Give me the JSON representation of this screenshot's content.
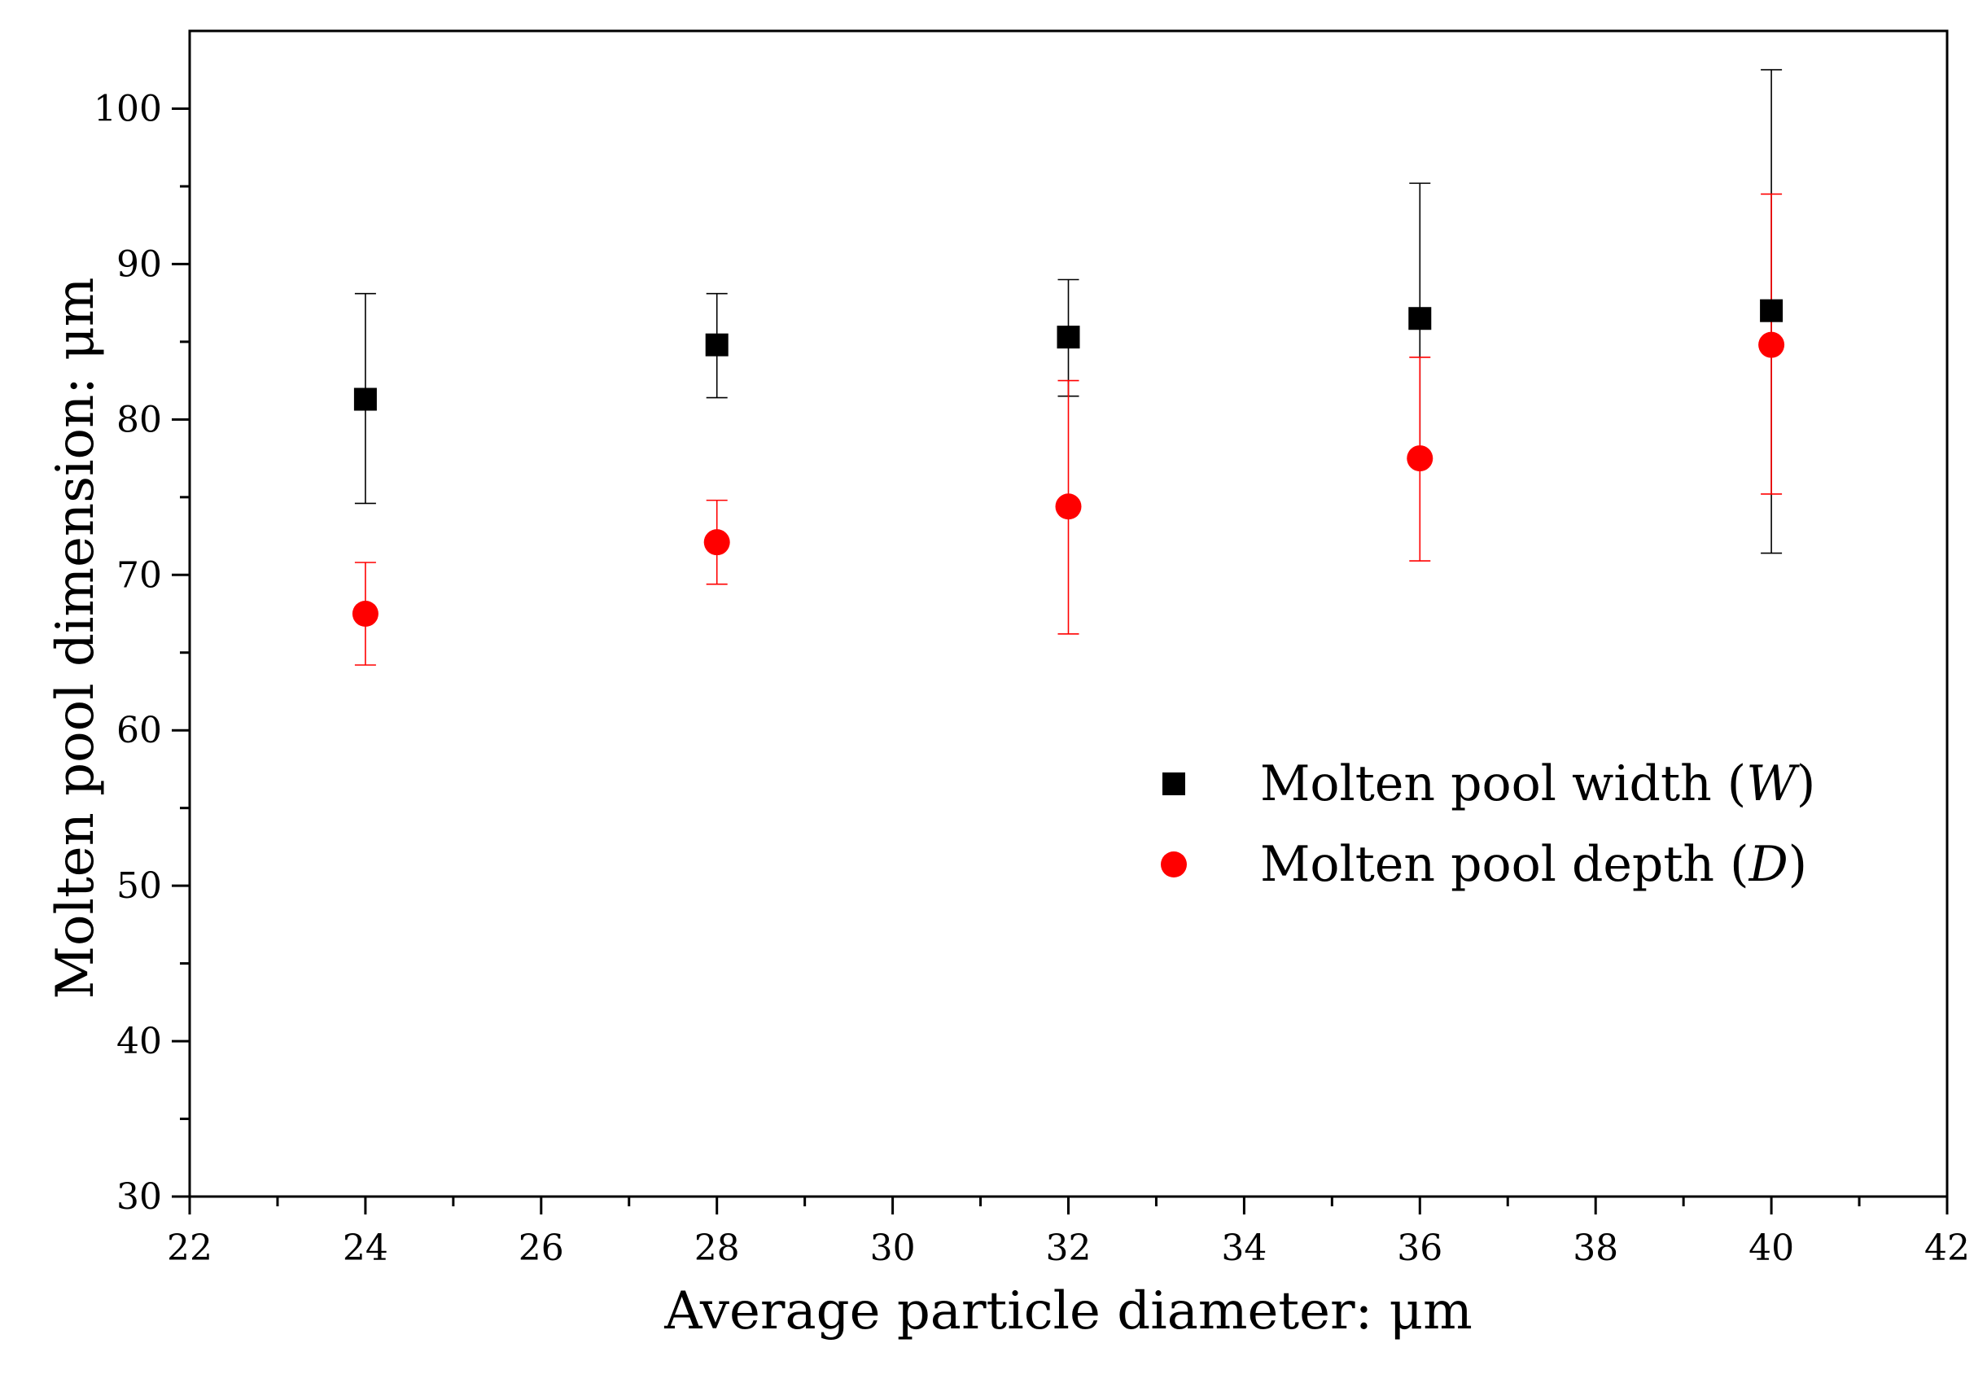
{
  "chart_data": {
    "type": "scatter",
    "title": "",
    "xlabel": "Average particle diameter: μm",
    "ylabel": "Molten pool dimension: μm",
    "xlim": [
      22,
      42
    ],
    "ylim": [
      30,
      105
    ],
    "x_major_ticks": [
      22,
      24,
      26,
      28,
      30,
      32,
      34,
      36,
      38,
      40,
      42
    ],
    "x_minor_ticks": [
      23,
      25,
      27,
      29,
      31,
      33,
      35,
      37,
      39,
      41
    ],
    "y_major_ticks": [
      30,
      40,
      50,
      60,
      70,
      80,
      90,
      100
    ],
    "y_minor_ticks": [
      35,
      45,
      55,
      65,
      75,
      85,
      95
    ],
    "x_tick_labels": [
      "22",
      "24",
      "26",
      "28",
      "30",
      "32",
      "34",
      "36",
      "38",
      "40",
      "42"
    ],
    "y_tick_labels": [
      "30",
      "40",
      "50",
      "60",
      "70",
      "80",
      "90",
      "100"
    ],
    "grid": false,
    "legend_position": "center-right",
    "series": [
      {
        "name": "Molten pool width",
        "name_symbol": "W",
        "legend_text_prefix": "Molten pool width (",
        "legend_text_suffix": ")",
        "marker": "square",
        "color": "#000000",
        "x": [
          24,
          28,
          32,
          36,
          40
        ],
        "y": [
          81.3,
          84.8,
          85.3,
          86.5,
          87.0
        ],
        "err_low": [
          74.6,
          81.4,
          81.5,
          77.9,
          71.4
        ],
        "err_high": [
          88.1,
          88.1,
          89.0,
          95.2,
          102.5
        ]
      },
      {
        "name": "Molten pool depth",
        "name_symbol": "D",
        "legend_text_prefix": "Molten pool depth (",
        "legend_text_suffix": ")",
        "marker": "circle",
        "color": "#ff0000",
        "x": [
          24,
          28,
          32,
          36,
          40
        ],
        "y": [
          67.5,
          72.1,
          74.4,
          77.5,
          84.8
        ],
        "err_low": [
          64.2,
          69.4,
          66.2,
          70.9,
          75.2
        ],
        "err_high": [
          70.8,
          74.8,
          82.5,
          84.0,
          94.5
        ]
      }
    ]
  }
}
